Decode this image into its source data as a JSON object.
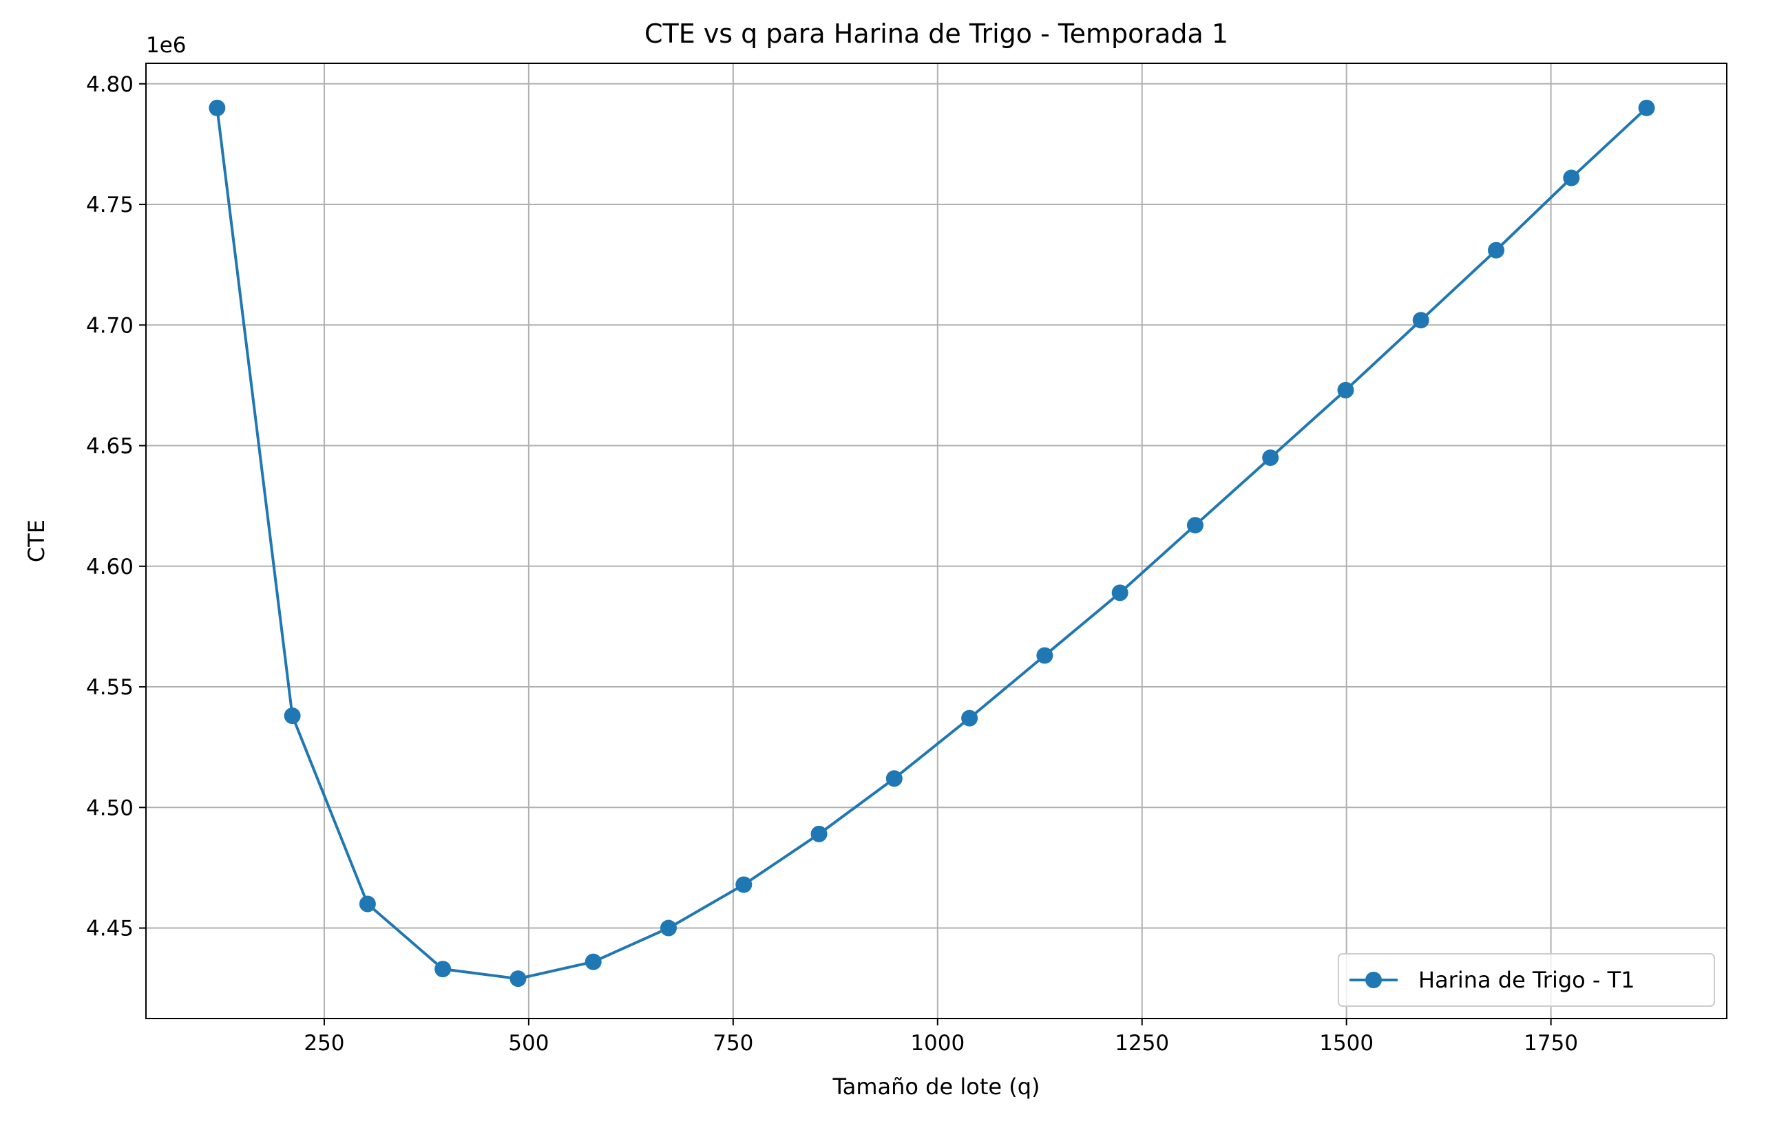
{
  "chart_data": {
    "type": "line",
    "title": "CTE vs q para Harina de Trigo - Temporada 1",
    "xlabel": "Tamaño de lote (q)",
    "ylabel": "CTE",
    "y_offset_label": "1e6",
    "xlim": [
      32,
      1965
    ],
    "ylim": [
      4.4125,
      4.8085
    ],
    "x_ticks": [
      250,
      500,
      750,
      1000,
      1250,
      1500,
      1750
    ],
    "x_tick_labels": [
      "250",
      "500",
      "750",
      "1000",
      "1250",
      "1500",
      "1750"
    ],
    "y_ticks": [
      4.45,
      4.5,
      4.55,
      4.6,
      4.65,
      4.7,
      4.75,
      4.8
    ],
    "y_tick_labels": [
      "4.45",
      "4.50",
      "4.55",
      "4.60",
      "4.65",
      "4.70",
      "4.75",
      "4.80"
    ],
    "grid": true,
    "legend_position": "lower-right",
    "series": [
      {
        "name": "Harina de Trigo - T1",
        "color": "#1f77b4",
        "marker": "circle",
        "x": [
          119,
          211,
          303,
          395,
          487,
          579,
          671,
          763,
          855,
          947,
          1039,
          1131,
          1223,
          1315,
          1407,
          1499,
          1591,
          1683,
          1775,
          1867
        ],
        "y": [
          4.79,
          4.538,
          4.46,
          4.433,
          4.429,
          4.436,
          4.45,
          4.468,
          4.489,
          4.512,
          4.537,
          4.563,
          4.589,
          4.617,
          4.645,
          4.673,
          4.702,
          4.731,
          4.761,
          4.79
        ]
      }
    ]
  }
}
